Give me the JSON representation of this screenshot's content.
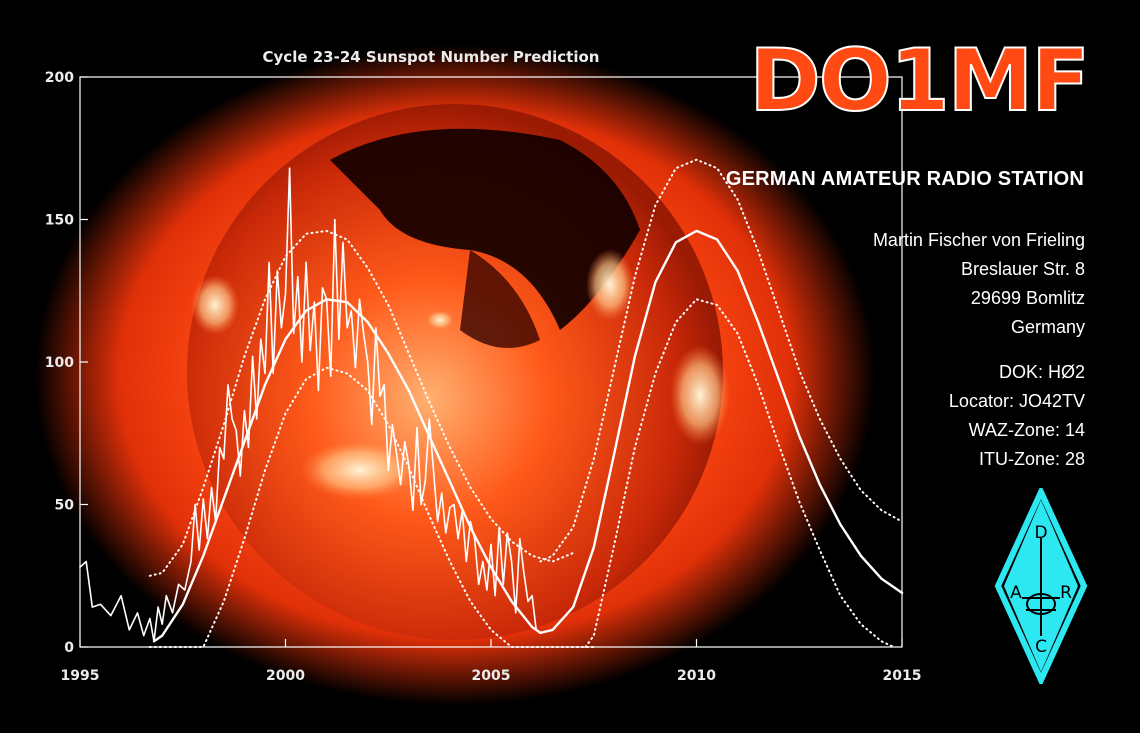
{
  "card": {
    "callsign": "DO1MF",
    "subtitle": "GERMAN AMATEUR RADIO STATION",
    "address": [
      "Martin Fischer von Frieling",
      "Breslauer Str. 8",
      "29699 Bomlitz",
      "Germany"
    ],
    "details": [
      "DOK: HØ2",
      "Locator: JO42TV",
      "WAZ-Zone: 14",
      "ITU-Zone: 28"
    ],
    "logo": {
      "letters": [
        "D",
        "A",
        "R",
        "C"
      ],
      "color": "#2de8f0"
    }
  },
  "chart_data": {
    "type": "line",
    "title": "Cycle 23-24 Sunspot Number Prediction",
    "xlabel": "",
    "ylabel": "",
    "xlim": [
      1995,
      2015
    ],
    "ylim": [
      0,
      200
    ],
    "x_ticks": [
      1995,
      2000,
      2005,
      2010,
      2015
    ],
    "y_ticks": [
      0,
      50,
      100,
      150,
      200
    ],
    "grid": false,
    "background": "image of the Sun (red/orange corona)",
    "colors": {
      "lines": "#ffffff",
      "sun": "#ff4a14",
      "axes": "#ffffff"
    },
    "series": [
      {
        "style": "jagged",
        "x": [
          1995.0,
          1995.15,
          1995.3,
          1995.5,
          1995.75,
          1996.0,
          1996.2,
          1996.4,
          1996.55,
          1996.7,
          1996.8,
          1996.9,
          1997.0,
          1997.1,
          1997.25,
          1997.4,
          1997.55,
          1997.7,
          1997.8,
          1997.9,
          1998.0,
          1998.1,
          1998.2,
          1998.3,
          1998.4,
          1998.5,
          1998.6,
          1998.7,
          1998.8,
          1998.9,
          1999.0,
          1999.1,
          1999.2,
          1999.3,
          1999.4,
          1999.5,
          1999.6,
          1999.7,
          1999.8,
          1999.9,
          2000.0,
          2000.1,
          2000.2,
          2000.3,
          2000.4,
          2000.5,
          2000.6,
          2000.7,
          2000.8,
          2000.9,
          2001.0,
          2001.1,
          2001.2,
          2001.3,
          2001.4,
          2001.5,
          2001.6,
          2001.7,
          2001.8,
          2001.9,
          2002.0,
          2002.1,
          2002.2,
          2002.3,
          2002.4,
          2002.5,
          2002.6,
          2002.7,
          2002.8,
          2002.9,
          2003.0,
          2003.1,
          2003.2,
          2003.3,
          2003.4,
          2003.5,
          2003.6,
          2003.7,
          2003.8,
          2003.9,
          2004.0,
          2004.1,
          2004.2,
          2004.3,
          2004.4,
          2004.5,
          2004.6,
          2004.7,
          2004.8,
          2004.9,
          2005.0,
          2005.1,
          2005.2,
          2005.3,
          2005.4,
          2005.5,
          2005.6,
          2005.7,
          2005.8,
          2005.9,
          2006.0,
          2006.1
        ],
        "y": [
          28,
          30,
          14,
          15,
          11,
          18,
          6,
          12,
          4,
          10,
          2,
          14,
          8,
          18,
          12,
          22,
          20,
          30,
          50,
          34,
          52,
          38,
          56,
          44,
          70,
          66,
          92,
          80,
          76,
          60,
          83,
          70,
          102,
          80,
          108,
          96,
          135,
          96,
          132,
          112,
          124,
          168,
          110,
          130,
          100,
          135,
          104,
          121,
          90,
          126,
          122,
          95,
          150,
          108,
          142,
          112,
          118,
          98,
          122,
          110,
          100,
          78,
          112,
          88,
          92,
          62,
          78,
          68,
          57,
          72,
          64,
          48,
          77,
          50,
          58,
          80,
          62,
          44,
          54,
          40,
          49,
          50,
          38,
          48,
          30,
          44,
          38,
          22,
          30,
          20,
          36,
          18,
          42,
          22,
          40,
          30,
          12,
          38,
          26,
          16,
          18,
          6
        ]
      },
      {
        "style": "smooth",
        "x": [
          1996.8,
          1997.0,
          1997.5,
          1998.0,
          1998.5,
          1999.0,
          1999.5,
          2000.0,
          2000.5,
          2001.0,
          2001.5,
          2002.0,
          2002.5,
          2003.0,
          2003.5,
          2004.0,
          2004.5,
          2005.0,
          2005.5,
          2006.0,
          2006.2
        ],
        "y": [
          2,
          4,
          15,
          32,
          52,
          72,
          92,
          108,
          118,
          122,
          121,
          114,
          103,
          90,
          74,
          58,
          42,
          28,
          16,
          7,
          5
        ]
      },
      {
        "style": "dotted",
        "x": [
          1996.7,
          1997.0,
          1997.5,
          1998.0,
          1998.5,
          1999.0,
          1999.5,
          2000.0,
          2000.5,
          2001.0,
          2001.5,
          2002.0,
          2002.5,
          2003.0,
          2003.5,
          2004.0,
          2004.5,
          2005.0,
          2005.5,
          2006.0,
          2006.5,
          2007.0
        ],
        "y": [
          25,
          26,
          36,
          56,
          78,
          102,
          122,
          137,
          145,
          146,
          143,
          133,
          120,
          103,
          86,
          70,
          56,
          45,
          37,
          32,
          30,
          33
        ]
      },
      {
        "style": "dotted",
        "x": [
          1996.7,
          1997.0,
          1997.5,
          1998.0,
          1998.5,
          1999.0,
          1999.5,
          2000.0,
          2000.5,
          2001.0,
          2001.5,
          2002.0,
          2002.5,
          2003.0,
          2003.5,
          2004.0,
          2004.5,
          2005.0,
          2005.5,
          2006.0,
          2006.5,
          2007.0,
          2007.5
        ],
        "y": [
          0,
          0,
          0,
          0,
          16,
          38,
          62,
          82,
          94,
          98,
          96,
          90,
          78,
          63,
          46,
          30,
          16,
          6,
          0,
          0,
          0,
          0,
          0
        ]
      },
      {
        "style": "smooth",
        "x": [
          2006.2,
          2006.5,
          2007.0,
          2007.5,
          2008.0,
          2008.5,
          2009.0,
          2009.5,
          2010.0,
          2010.5,
          2011.0,
          2011.5,
          2012.0,
          2012.5,
          2013.0,
          2013.5,
          2014.0,
          2014.5,
          2015.0
        ],
        "y": [
          5,
          6,
          14,
          35,
          68,
          102,
          128,
          142,
          146,
          143,
          132,
          114,
          94,
          74,
          57,
          43,
          32,
          24,
          19
        ]
      },
      {
        "style": "dotted",
        "x": [
          2006.2,
          2006.5,
          2007.0,
          2007.5,
          2008.0,
          2008.5,
          2009.0,
          2009.5,
          2010.0,
          2010.5,
          2011.0,
          2011.5,
          2012.0,
          2012.5,
          2013.0,
          2013.5,
          2014.0,
          2014.5,
          2015.0
        ],
        "y": [
          30,
          32,
          42,
          66,
          98,
          130,
          155,
          168,
          171,
          168,
          157,
          139,
          118,
          97,
          80,
          66,
          55,
          48,
          44
        ]
      },
      {
        "style": "dotted",
        "x": [
          2007.3,
          2007.5,
          2008.0,
          2008.5,
          2009.0,
          2009.5,
          2010.0,
          2010.5,
          2011.0,
          2011.5,
          2012.0,
          2012.5,
          2013.0,
          2013.5,
          2014.0,
          2014.5,
          2014.8
        ],
        "y": [
          0,
          4,
          36,
          70,
          96,
          114,
          122,
          120,
          110,
          92,
          71,
          51,
          34,
          18,
          8,
          2,
          0
        ]
      }
    ]
  }
}
